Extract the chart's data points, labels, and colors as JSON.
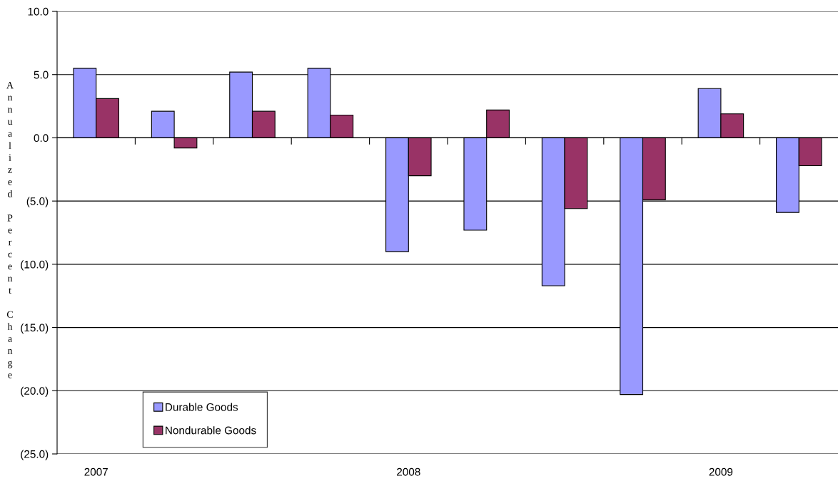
{
  "chart_data": {
    "type": "bar",
    "ylabel": "Annualized Percent Change",
    "categories": [
      "2007",
      null,
      null,
      null,
      "2008",
      null,
      null,
      null,
      "2009",
      null
    ],
    "series": [
      {
        "name": "Durable Goods",
        "color": "#9999ff",
        "values": [
          5.5,
          2.1,
          5.2,
          5.5,
          -9.0,
          -7.3,
          -11.7,
          -20.3,
          3.9,
          -5.9
        ]
      },
      {
        "name": "Nondurable Goods",
        "color": "#993366",
        "values": [
          3.1,
          -0.8,
          2.1,
          1.8,
          -3.0,
          2.2,
          -5.6,
          -4.9,
          1.9,
          -2.2
        ]
      }
    ],
    "ylim": [
      -25,
      10
    ],
    "yticks": [
      {
        "value": -25,
        "label": "(25.0)"
      },
      {
        "value": -20,
        "label": "(20.0)"
      },
      {
        "value": -15,
        "label": "(15.0)"
      },
      {
        "value": -10,
        "label": "(10.0)"
      },
      {
        "value": -5,
        "label": "(5.0)"
      },
      {
        "value": 0,
        "label": "0.0"
      },
      {
        "value": 5,
        "label": "5.0"
      },
      {
        "value": 10,
        "label": "10.0"
      }
    ],
    "grid": "y",
    "legend": "bottom left"
  }
}
